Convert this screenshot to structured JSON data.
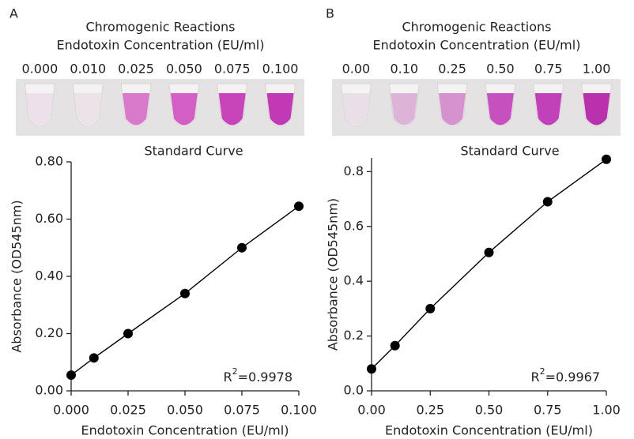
{
  "chart_data": [
    {
      "type": "line",
      "panel_label": "A",
      "header": [
        "Chromogenic Reactions",
        "Endotoxin Concentration (EU/ml)"
      ],
      "tube_labels": [
        "0.000",
        "0.010",
        "0.025",
        "0.050",
        "0.075",
        "0.100"
      ],
      "tube_colors": [
        "#eee0ea",
        "#ece3e9",
        "#d979ca",
        "#d35fc4",
        "#c744b9",
        "#c03ab5"
      ],
      "title": "Standard Curve",
      "x_label": "Endotoxin Concentration (EU/ml)",
      "y_label": "Absorbance (OD545nm)",
      "x": [
        0,
        0.01,
        0.025,
        0.05,
        0.075,
        0.1
      ],
      "series": [
        {
          "name": "Absorbance",
          "color": "#000000",
          "values": [
            0.055,
            0.115,
            0.2,
            0.34,
            0.5,
            0.645
          ]
        }
      ],
      "xlim": [
        0,
        0.1
      ],
      "xticks": [
        {
          "value": 0,
          "label": "0.000"
        },
        {
          "value": 0.025,
          "label": "0.025"
        },
        {
          "value": 0.05,
          "label": "0.050"
        },
        {
          "value": 0.075,
          "label": "0.075"
        },
        {
          "value": 0.1,
          "label": "0.100"
        }
      ],
      "ylim": [
        0,
        0.8
      ],
      "yticks": [
        {
          "value": 0,
          "label": "0.00"
        },
        {
          "value": 0.2,
          "label": "0.20"
        },
        {
          "value": 0.4,
          "label": "0.40"
        },
        {
          "value": 0.6,
          "label": "0.60"
        },
        {
          "value": 0.8,
          "label": "0.80"
        }
      ],
      "annotation": [
        "R",
        "2",
        "=0.9978"
      ]
    },
    {
      "type": "line",
      "panel_label": "B",
      "header": [
        "Chromogenic Reactions",
        "Endotoxin Concentration (EU/ml)"
      ],
      "tube_labels": [
        "0.00",
        "0.10",
        "0.25",
        "0.50",
        "0.75",
        "1.00"
      ],
      "tube_colors": [
        "#e9dfe7",
        "#dcb4d8",
        "#d592cf",
        "#c651be",
        "#c141b8",
        "#b831ad"
      ],
      "title": "Standard Curve",
      "x_label": "Endotoxin Concentration (EU/ml)",
      "y_label": "Absorbance (OD545nm)",
      "x": [
        0,
        0.1,
        0.25,
        0.5,
        0.75,
        1
      ],
      "series": [
        {
          "name": "Absorbance",
          "color": "#000000",
          "values": [
            0.08,
            0.165,
            0.3,
            0.505,
            0.69,
            0.845
          ]
        }
      ],
      "xlim": [
        0,
        1
      ],
      "xticks": [
        {
          "value": 0,
          "label": "0.00"
        },
        {
          "value": 0.25,
          "label": "0.25"
        },
        {
          "value": 0.5,
          "label": "0.50"
        },
        {
          "value": 0.75,
          "label": "0.75"
        },
        {
          "value": 1,
          "label": "1.00"
        }
      ],
      "ylim": [
        0,
        0.85
      ],
      "yticks": [
        {
          "value": 0,
          "label": "0.0"
        },
        0.2,
        0.4,
        0.6,
        0.8
      ],
      "annotation": [
        "R",
        "2",
        "=0.9967"
      ]
    }
  ]
}
